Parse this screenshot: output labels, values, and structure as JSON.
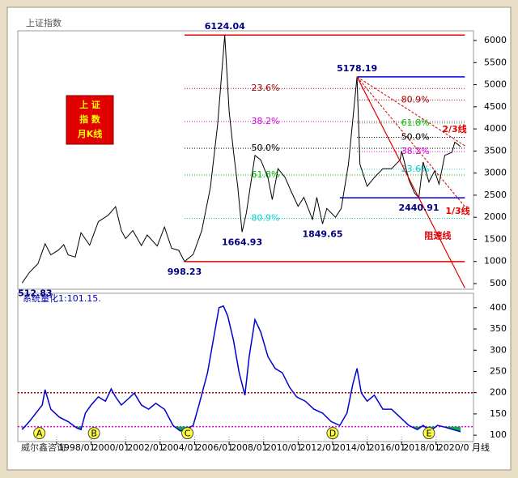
{
  "watermark": "威尔鑫咨询",
  "chart_data": [
    {
      "type": "line",
      "title": "上证指数",
      "stamp": [
        "上 证",
        "指 数",
        "月K线"
      ],
      "xlim": [
        "1995/10",
        "2022/03"
      ],
      "ylim": [
        372,
        6220
      ],
      "yticks": [
        500,
        1000,
        1500,
        2000,
        2500,
        3000,
        3500,
        4000,
        4500,
        5000,
        5500,
        6000
      ],
      "x": [
        "1996/01",
        "1996/06",
        "1996/12",
        "1997/05",
        "1997/09",
        "1998/02",
        "1998/06",
        "1998/09",
        "1999/02",
        "1999/06",
        "1999/12",
        "2000/06",
        "2001/01",
        "2001/06",
        "2001/10",
        "2002/01",
        "2002/06",
        "2002/12",
        "2003/04",
        "2003/11",
        "2004/04",
        "2004/09",
        "2005/02",
        "2005/06",
        "2005/12",
        "2006/06",
        "2006/12",
        "2007/05",
        "2007/10",
        "2008/01",
        "2008/04",
        "2008/07",
        "2008/10",
        "2009/01",
        "2009/07",
        "2009/11",
        "2010/04",
        "2010/07",
        "2010/11",
        "2011/04",
        "2011/08",
        "2012/01",
        "2012/05",
        "2012/11",
        "2013/02",
        "2013/06",
        "2013/09",
        "2014/03",
        "2014/07",
        "2014/12",
        "2015/06",
        "2015/08",
        "2016/01",
        "2016/06",
        "2016/12",
        "2017/06",
        "2017/12",
        "2018/01",
        "2018/06",
        "2018/10",
        "2019/01",
        "2019/04",
        "2019/08",
        "2019/12",
        "2020/03",
        "2020/07",
        "2020/12",
        "2021/02",
        "2021/06"
      ],
      "series": [
        {
          "color": "#000000",
          "values": [
            512.83,
            750,
            950,
            1400,
            1150,
            1250,
            1380,
            1150,
            1100,
            1650,
            1370,
            1900,
            2050,
            2240,
            1700,
            1520,
            1700,
            1360,
            1600,
            1350,
            1780,
            1300,
            1250,
            998.23,
            1160,
            1700,
            2680,
            4100,
            6124.04,
            4400,
            3500,
            2700,
            1664.93,
            2100,
            3400,
            3300,
            2900,
            2400,
            3100,
            2900,
            2600,
            2250,
            2450,
            1950,
            2450,
            1849.65,
            2200,
            2000,
            2200,
            3200,
            5178.19,
            3200,
            2700,
            2900,
            3100,
            3100,
            3300,
            3500,
            2850,
            2550,
            2440.91,
            3250,
            2800,
            3050,
            2750,
            3400,
            3470,
            3700,
            3600
          ]
        }
      ],
      "annotations": [
        {
          "x": "1996/01",
          "value": 512.83
        },
        {
          "x": "2005/06",
          "value": 998.23
        },
        {
          "x": "2007/10",
          "value": 6124.04
        },
        {
          "x": "2008/10",
          "value": 1664.93
        },
        {
          "x": "2013/06",
          "value": 1849.65
        },
        {
          "x": "2015/06",
          "value": 5178.19
        },
        {
          "x": "2019/01",
          "value": 2440.91
        }
      ],
      "levels": [
        {
          "value": 6124.04,
          "color": "#e00000",
          "from": "2005/06",
          "to": "2021/09"
        },
        {
          "value": 998.23,
          "color": "#e00000",
          "from": "2005/06",
          "to": "2021/09"
        },
        {
          "value": 5178.19,
          "color": "#0000e0",
          "from": "2015/06",
          "to": "2021/09"
        },
        {
          "value": 2440.91,
          "color": "#0000e0",
          "from": "2014/06",
          "to": "2021/09"
        },
        {
          "value": 4914.4,
          "label": "23.6%",
          "color": "#a00000",
          "from": "2005/06",
          "to": "2021/09",
          "dotted": true
        },
        {
          "value": 4166,
          "label": "38.2%",
          "color": "#e000e0",
          "from": "2005/06",
          "to": "2021/09",
          "dotted": true
        },
        {
          "value": 3561,
          "label": "50.0%",
          "color": "#000000",
          "from": "2005/06",
          "to": "2021/09",
          "dotted": true
        },
        {
          "value": 2956,
          "label": "61.8%",
          "color": "#00b000",
          "from": "2005/06",
          "to": "2021/09",
          "dotted": true
        },
        {
          "value": 1977,
          "label": "80.9%",
          "color": "#00d0d0",
          "from": "2005/06",
          "to": "2021/09",
          "dotted": true
        },
        {
          "value": 4655,
          "label": "80.9%",
          "color": "#a00000",
          "from": "2015/06",
          "to": "2021/09",
          "dotted": true
        },
        {
          "value": 4132,
          "label": "61.8%",
          "color": "#00c000",
          "from": "2015/06",
          "to": "2021/09",
          "dotted": true
        },
        {
          "value": 3810,
          "label": "50.0%",
          "color": "#000000",
          "from": "2015/06",
          "to": "2021/09",
          "dotted": true
        },
        {
          "value": 3486,
          "label": "38.2%",
          "color": "#e000e0",
          "from": "2015/06",
          "to": "2021/09",
          "dotted": true
        },
        {
          "value": 3087,
          "label": "23.6%",
          "color": "#00d0d0",
          "from": "2015/06",
          "to": "2021/09",
          "dotted": true
        }
      ],
      "fans": [
        {
          "label": "2/3线",
          "from": {
            "x": "2015/06",
            "value": 5178.19
          },
          "to": {
            "x": "2021/09",
            "value": 3617
          },
          "dashed": true
        },
        {
          "label": "1/3线",
          "from": {
            "x": "2015/06",
            "value": 5178.19
          },
          "to": {
            "x": "2021/09",
            "value": 2242
          },
          "dashed": true
        },
        {
          "label": "阻速线",
          "from": {
            "x": "2015/06",
            "value": 5178.19
          },
          "to": {
            "x": "2021/09",
            "value": 400
          }
        }
      ]
    },
    {
      "type": "line",
      "title": "系统量化1:101.15.",
      "xlim": [
        "1995/10",
        "2022/03"
      ],
      "ylim": [
        85,
        434
      ],
      "yticks": [
        100,
        150,
        200,
        250,
        300,
        350,
        400
      ],
      "xticks": [
        "1998/01",
        "2000/01",
        "2002/01",
        "2004/01",
        "2006/01",
        "2008/01",
        "2010/01",
        "2012/01",
        "2014/01",
        "2016/01",
        "2018/01",
        "2020/01"
      ],
      "x_note": "月线",
      "x": [
        "1996/01",
        "1996/06",
        "1997/03",
        "1997/05",
        "1997/09",
        "1998/03",
        "1998/09",
        "1999/03",
        "1999/06",
        "1999/09",
        "2000/01",
        "2000/06",
        "2000/11",
        "2001/03",
        "2001/06",
        "2001/10",
        "2002/03",
        "2002/07",
        "2002/12",
        "2003/05",
        "2003/10",
        "2004/04",
        "2004/10",
        "2005/03",
        "2005/07",
        "2005/12",
        "2006/04",
        "2006/10",
        "2007/02",
        "2007/06",
        "2007/09",
        "2007/12",
        "2008/04",
        "2008/08",
        "2008/12",
        "2009/03",
        "2009/07",
        "2009/11",
        "2010/04",
        "2010/09",
        "2011/02",
        "2011/07",
        "2011/12",
        "2012/06",
        "2012/12",
        "2013/06",
        "2013/12",
        "2014/06",
        "2014/11",
        "2015/03",
        "2015/06",
        "2015/09",
        "2016/01",
        "2016/06",
        "2016/12",
        "2017/06",
        "2017/12",
        "2018/06",
        "2018/12",
        "2019/04",
        "2019/09",
        "2020/02",
        "2020/07",
        "2021/01",
        "2021/06"
      ],
      "series": [
        {
          "color": "#0000d0",
          "values": [
            113,
            132,
            171,
            207,
            161,
            142,
            132,
            117,
            113,
            152,
            171,
            190,
            180,
            209,
            190,
            171,
            186,
            199,
            171,
            161,
            175,
            161,
            123,
            110,
            113,
            123,
            171,
            247,
            324,
            400,
            404,
            381,
            324,
            247,
            194,
            285,
            372,
            343,
            285,
            257,
            247,
            213,
            190,
            180,
            161,
            152,
            132,
            123,
            152,
            219,
            257,
            199,
            180,
            194,
            161,
            161,
            142,
            123,
            113,
            123,
            110,
            123,
            119,
            113,
            108
          ]
        }
      ],
      "levels": [
        {
          "value": 200,
          "color": "#a00000"
        },
        {
          "value": 120,
          "color": "#e000e0",
          "fill_below": "#00b040"
        }
      ],
      "markers": [
        {
          "label": "A",
          "x": "1997/01"
        },
        {
          "label": "B",
          "x": "2000/03"
        },
        {
          "label": "C",
          "x": "2005/08"
        },
        {
          "label": "D",
          "x": "2014/01"
        },
        {
          "label": "E",
          "x": "2019/08"
        }
      ]
    }
  ]
}
